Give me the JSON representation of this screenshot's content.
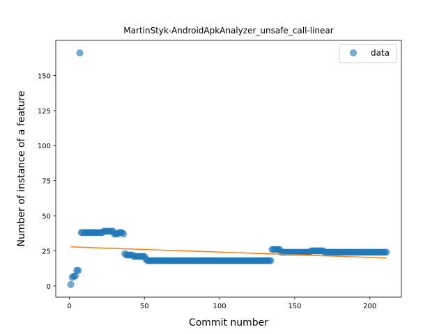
{
  "chart_data": {
    "type": "scatter",
    "title": "MartinStyk-AndroidApkAnalyzer_unsafe_call-linear",
    "xlabel": "Commit number",
    "ylabel": "Number of instance of a feature",
    "xlim": [
      -9,
      221
    ],
    "ylim": [
      -8,
      175
    ],
    "xticks": [
      0,
      50,
      100,
      150,
      200
    ],
    "yticks": [
      0,
      25,
      50,
      75,
      100,
      125,
      150
    ],
    "legend": {
      "entries": [
        "data"
      ],
      "placement": "top-right"
    },
    "grid": false,
    "series": [
      {
        "name": "data",
        "kind": "scatter",
        "color": "#1f77b4",
        "points": [
          [
            1,
            1
          ],
          [
            2,
            6
          ],
          [
            3,
            7
          ],
          [
            4,
            7
          ],
          [
            5,
            11
          ],
          [
            6,
            11
          ],
          [
            7,
            166
          ],
          [
            8,
            38
          ],
          [
            9,
            38
          ],
          [
            10,
            38
          ],
          [
            11,
            38
          ],
          [
            12,
            38
          ],
          [
            13,
            38
          ],
          [
            14,
            38
          ],
          [
            15,
            38
          ],
          [
            16,
            38
          ],
          [
            17,
            38
          ],
          [
            18,
            38
          ],
          [
            19,
            38
          ],
          [
            20,
            38
          ],
          [
            21,
            38
          ],
          [
            22,
            38
          ],
          [
            23,
            39
          ],
          [
            24,
            39
          ],
          [
            25,
            39
          ],
          [
            26,
            39
          ],
          [
            27,
            39
          ],
          [
            28,
            39
          ],
          [
            29,
            39
          ],
          [
            30,
            37
          ],
          [
            31,
            37
          ],
          [
            32,
            37
          ],
          [
            33,
            38
          ],
          [
            34,
            38
          ],
          [
            35,
            38
          ],
          [
            36,
            37
          ],
          [
            37,
            23
          ],
          [
            38,
            22
          ],
          [
            39,
            22
          ],
          [
            40,
            22
          ],
          [
            41,
            22
          ],
          [
            42,
            22
          ],
          [
            43,
            21
          ],
          [
            44,
            21
          ],
          [
            45,
            21
          ],
          [
            46,
            21
          ],
          [
            47,
            21
          ],
          [
            48,
            21
          ],
          [
            49,
            21
          ],
          [
            50,
            21
          ],
          [
            51,
            19
          ],
          [
            52,
            18
          ],
          [
            53,
            18
          ],
          [
            54,
            18
          ],
          [
            55,
            18
          ],
          [
            56,
            18
          ],
          [
            57,
            18
          ],
          [
            58,
            18
          ],
          [
            59,
            18
          ],
          [
            60,
            18
          ],
          [
            61,
            18
          ],
          [
            62,
            18
          ],
          [
            63,
            18
          ],
          [
            64,
            18
          ],
          [
            65,
            18
          ],
          [
            66,
            18
          ],
          [
            67,
            18
          ],
          [
            68,
            18
          ],
          [
            69,
            18
          ],
          [
            70,
            18
          ],
          [
            71,
            18
          ],
          [
            72,
            18
          ],
          [
            73,
            18
          ],
          [
            74,
            18
          ],
          [
            75,
            18
          ],
          [
            76,
            18
          ],
          [
            77,
            18
          ],
          [
            78,
            18
          ],
          [
            79,
            18
          ],
          [
            80,
            18
          ],
          [
            81,
            18
          ],
          [
            82,
            18
          ],
          [
            83,
            18
          ],
          [
            84,
            18
          ],
          [
            85,
            18
          ],
          [
            86,
            18
          ],
          [
            87,
            18
          ],
          [
            88,
            18
          ],
          [
            89,
            18
          ],
          [
            90,
            18
          ],
          [
            91,
            18
          ],
          [
            92,
            18
          ],
          [
            93,
            18
          ],
          [
            94,
            18
          ],
          [
            95,
            18
          ],
          [
            96,
            18
          ],
          [
            97,
            18
          ],
          [
            98,
            18
          ],
          [
            99,
            18
          ],
          [
            100,
            18
          ],
          [
            101,
            18
          ],
          [
            102,
            18
          ],
          [
            103,
            18
          ],
          [
            104,
            18
          ],
          [
            105,
            18
          ],
          [
            106,
            18
          ],
          [
            107,
            18
          ],
          [
            108,
            18
          ],
          [
            109,
            18
          ],
          [
            110,
            18
          ],
          [
            111,
            18
          ],
          [
            112,
            18
          ],
          [
            113,
            18
          ],
          [
            114,
            18
          ],
          [
            115,
            18
          ],
          [
            116,
            18
          ],
          [
            117,
            18
          ],
          [
            118,
            18
          ],
          [
            119,
            18
          ],
          [
            120,
            18
          ],
          [
            121,
            18
          ],
          [
            122,
            18
          ],
          [
            123,
            18
          ],
          [
            124,
            18
          ],
          [
            125,
            18
          ],
          [
            126,
            18
          ],
          [
            127,
            18
          ],
          [
            128,
            18
          ],
          [
            129,
            18
          ],
          [
            130,
            18
          ],
          [
            131,
            18
          ],
          [
            132,
            18
          ],
          [
            133,
            18
          ],
          [
            134,
            18
          ],
          [
            135,
            26
          ],
          [
            136,
            26
          ],
          [
            137,
            26
          ],
          [
            138,
            26
          ],
          [
            139,
            26
          ],
          [
            140,
            26
          ],
          [
            141,
            24
          ],
          [
            142,
            24
          ],
          [
            143,
            24
          ],
          [
            144,
            24
          ],
          [
            145,
            24
          ],
          [
            146,
            24
          ],
          [
            147,
            24
          ],
          [
            148,
            24
          ],
          [
            149,
            24
          ],
          [
            150,
            24
          ],
          [
            151,
            24
          ],
          [
            152,
            24
          ],
          [
            153,
            24
          ],
          [
            154,
            24
          ],
          [
            155,
            24
          ],
          [
            156,
            24
          ],
          [
            157,
            24
          ],
          [
            158,
            24
          ],
          [
            159,
            24
          ],
          [
            160,
            24
          ],
          [
            161,
            25
          ],
          [
            162,
            25
          ],
          [
            163,
            25
          ],
          [
            164,
            25
          ],
          [
            165,
            25
          ],
          [
            166,
            25
          ],
          [
            167,
            25
          ],
          [
            168,
            25
          ],
          [
            169,
            25
          ],
          [
            170,
            24
          ],
          [
            171,
            24
          ],
          [
            172,
            24
          ],
          [
            173,
            24
          ],
          [
            174,
            24
          ],
          [
            175,
            24
          ],
          [
            176,
            24
          ],
          [
            177,
            24
          ],
          [
            178,
            24
          ],
          [
            179,
            24
          ],
          [
            180,
            24
          ],
          [
            181,
            24
          ],
          [
            182,
            24
          ],
          [
            183,
            24
          ],
          [
            184,
            24
          ],
          [
            185,
            24
          ],
          [
            186,
            24
          ],
          [
            187,
            24
          ],
          [
            188,
            24
          ],
          [
            189,
            24
          ],
          [
            190,
            24
          ],
          [
            191,
            24
          ],
          [
            192,
            24
          ],
          [
            193,
            24
          ],
          [
            194,
            24
          ],
          [
            195,
            24
          ],
          [
            196,
            24
          ],
          [
            197,
            24
          ],
          [
            198,
            24
          ],
          [
            199,
            24
          ],
          [
            200,
            24
          ],
          [
            201,
            24
          ],
          [
            202,
            24
          ],
          [
            203,
            24
          ],
          [
            204,
            24
          ],
          [
            205,
            24
          ],
          [
            206,
            24
          ],
          [
            207,
            24
          ],
          [
            208,
            24
          ],
          [
            209,
            24
          ],
          [
            210,
            24
          ],
          [
            211,
            24
          ]
        ]
      },
      {
        "name": "",
        "kind": "line",
        "color": "#ff7f0e",
        "points": [
          [
            1,
            27.8
          ],
          [
            211,
            19.9
          ]
        ]
      }
    ]
  }
}
